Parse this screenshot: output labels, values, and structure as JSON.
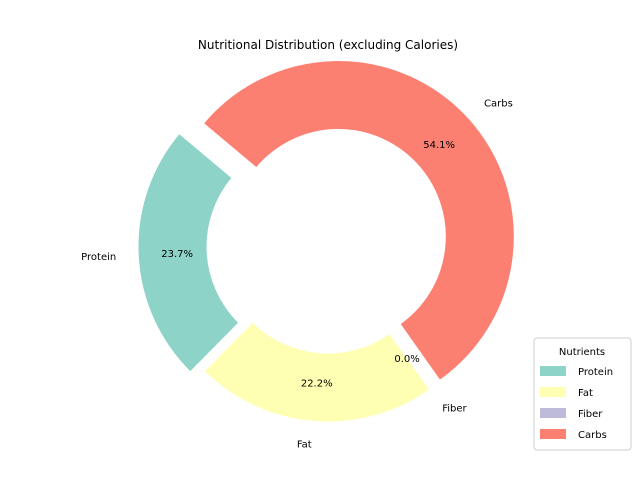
{
  "chart_data": {
    "type": "pie",
    "style": "donut",
    "title": "Nutritional Distribution (excluding Calories)",
    "categories": [
      "Protein",
      "Fat",
      "Fiber",
      "Carbs"
    ],
    "values": [
      23.7,
      22.2,
      0.0,
      54.1
    ],
    "value_labels": [
      "23.7%",
      "22.2%",
      "0.0%",
      "54.1%"
    ],
    "colors": [
      "#8dd3c7",
      "#ffffb3",
      "#bebada",
      "#fb8072"
    ],
    "exploded": [
      "Protein",
      "Carbs"
    ],
    "start_angle": 140,
    "legend": {
      "title": "Nutrients",
      "placement": "lower-right",
      "entries": [
        "Protein",
        "Fat",
        "Fiber",
        "Carbs"
      ]
    }
  }
}
